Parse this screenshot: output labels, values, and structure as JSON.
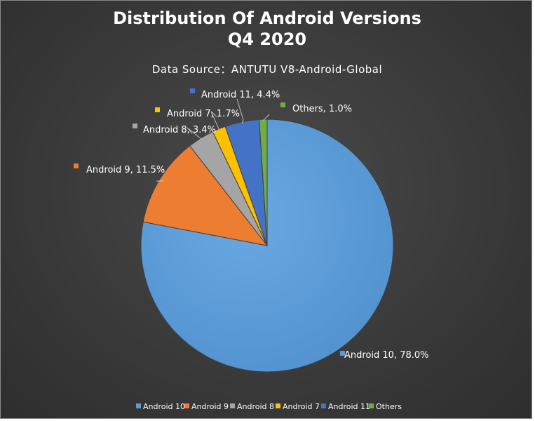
{
  "chart_data": {
    "type": "pie",
    "title_lines": [
      "Distribution Of Android Versions",
      "Q4 2020"
    ],
    "subtitle": "Data Source：ANTUTU V8-Android-Global",
    "categories": [
      "Android 10",
      "Android 9",
      "Android 8",
      "Android 7",
      "Android 11",
      "Others"
    ],
    "values": [
      78.0,
      11.5,
      3.4,
      1.7,
      4.4,
      1.0
    ],
    "value_unit": "%",
    "data_labels": [
      "Android 10, 78.0%",
      "Android 9, 11.5%",
      "Android 8, 3.4%",
      "Android 7, 1.7%",
      "Android 11, 4.4%",
      "Others, 1.0%"
    ],
    "colors": [
      "#5b9bd5",
      "#ed7d31",
      "#a5a5a5",
      "#ffc000",
      "#4472c4",
      "#70ad47"
    ],
    "legend_position": "bottom"
  }
}
